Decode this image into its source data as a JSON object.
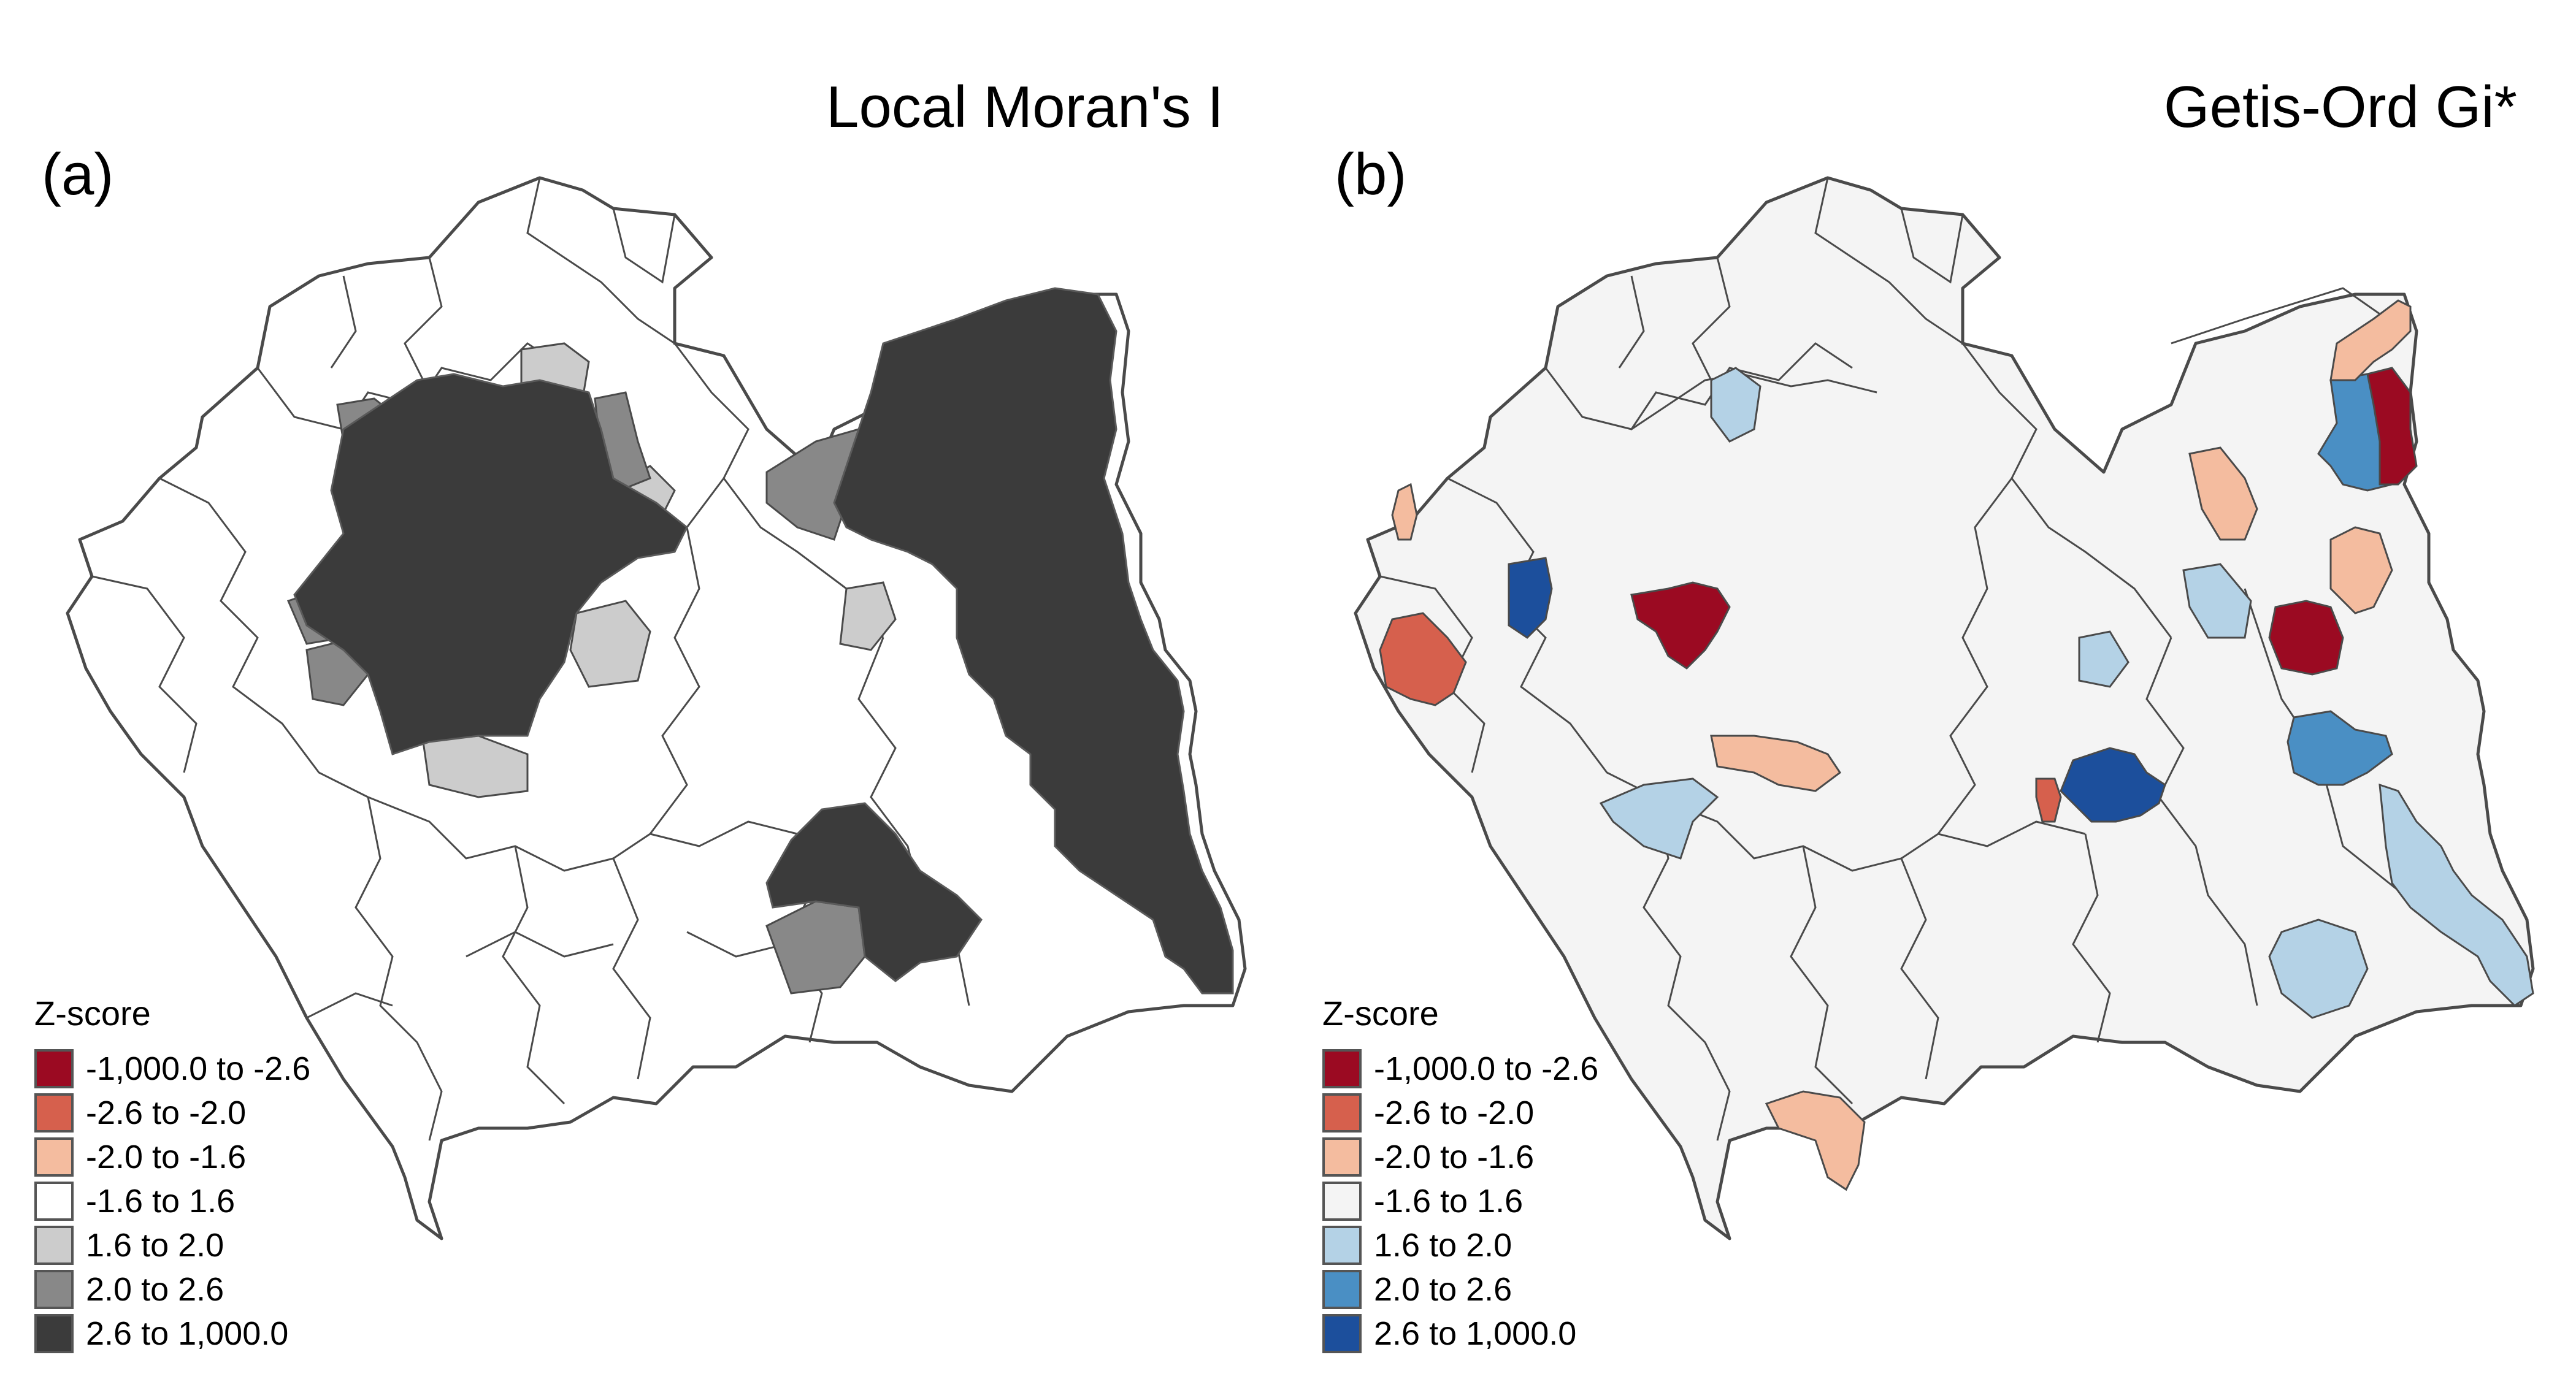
{
  "panels": [
    {
      "id": "a",
      "letter": "(a)",
      "title": "Local Moran's I",
      "legend": {
        "title": "Z-score",
        "items": [
          {
            "label": "-1,000.0 to -2.6",
            "color": "#9b0a22"
          },
          {
            "label": "-2.6 to -2.0",
            "color": "#d6604d"
          },
          {
            "label": "-2.0 to -1.6",
            "color": "#f4bc9f"
          },
          {
            "label": "-1.6 to 1.6",
            "color": "#ffffff"
          },
          {
            "label": "1.6 to 2.0",
            "color": "#cccccc"
          },
          {
            "label": "2.0 to 2.6",
            "color": "#888888"
          },
          {
            "label": "2.6 to 1,000.0",
            "color": "#3b3b3b"
          }
        ]
      }
    },
    {
      "id": "b",
      "letter": "(b)",
      "title": "Getis-Ord Gi*",
      "legend": {
        "title": "Z-score",
        "items": [
          {
            "label": "-1,000.0 to -2.6",
            "color": "#9b0a22"
          },
          {
            "label": "-2.6 to -2.0",
            "color": "#d6604d"
          },
          {
            "label": "-2.0 to -1.6",
            "color": "#f4bc9f"
          },
          {
            "label": "-1.6 to 1.6",
            "color": "#f4f4f4"
          },
          {
            "label": "1.6 to 2.0",
            "color": "#b4d2e6"
          },
          {
            "label": "2.0 to 2.6",
            "color": "#4a8fc4"
          },
          {
            "label": "2.6 to 1,000.0",
            "color": "#1c4f9c"
          }
        ]
      }
    }
  ]
}
